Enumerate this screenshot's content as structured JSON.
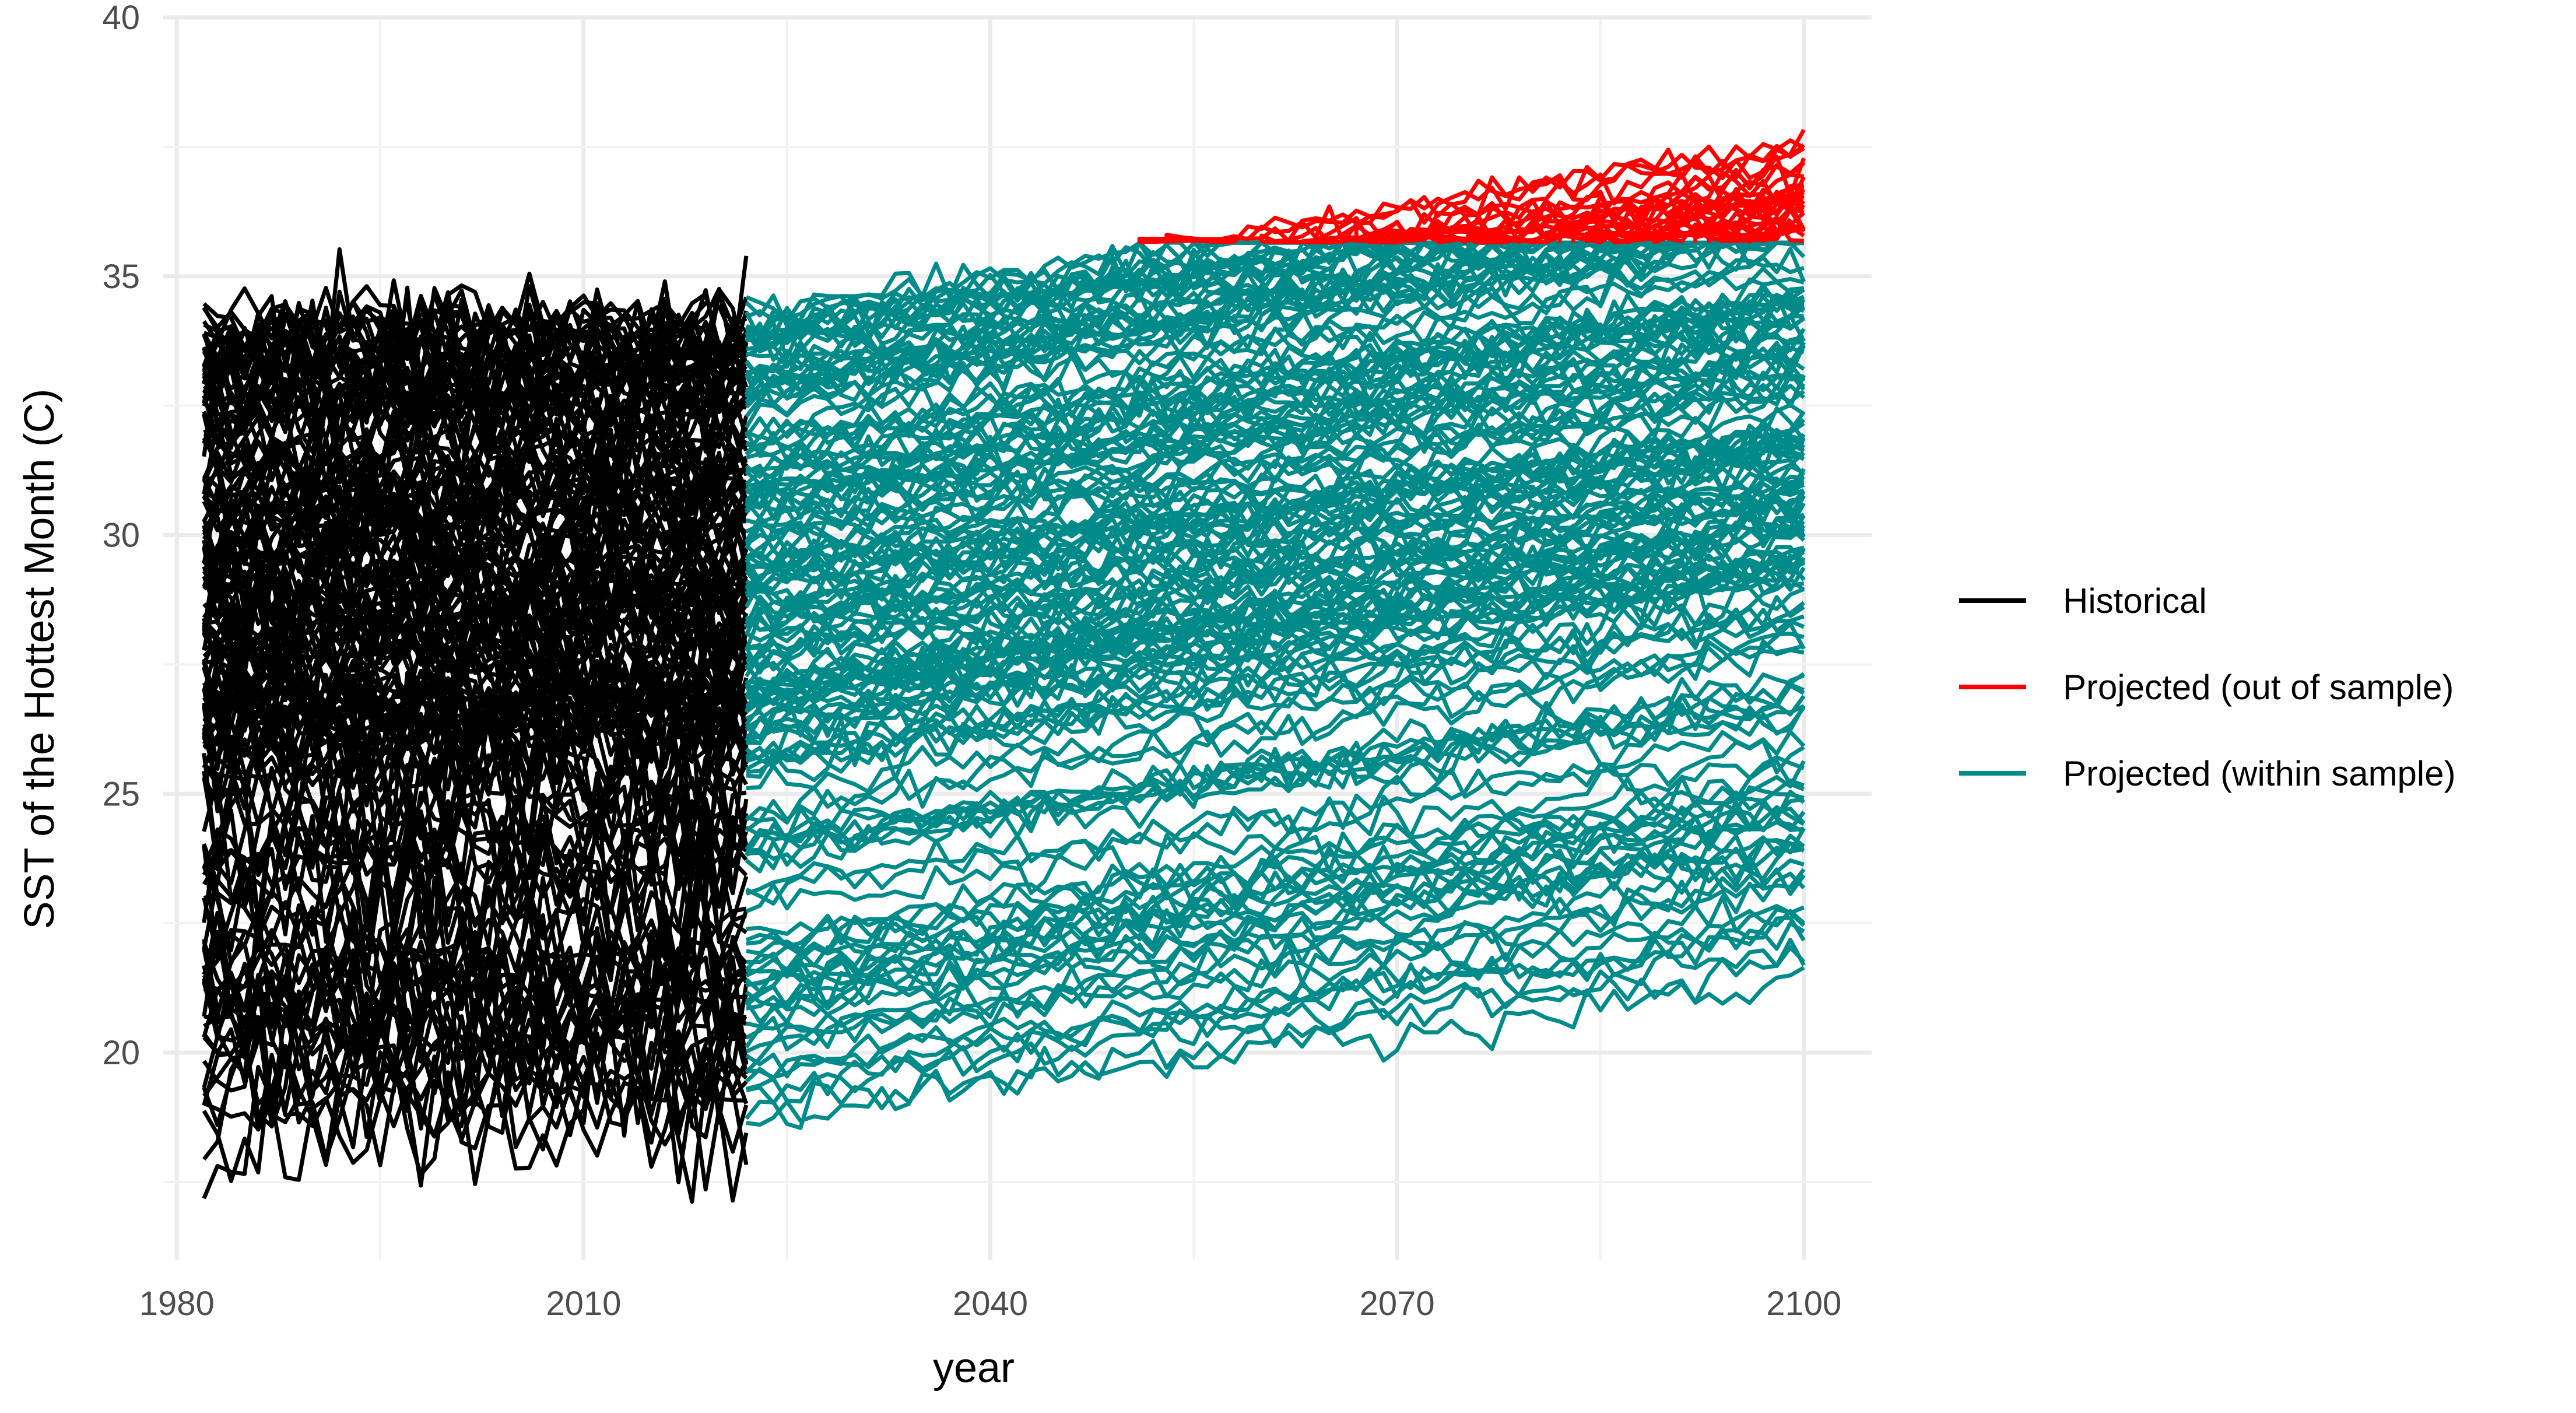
{
  "chart_data": {
    "type": "line",
    "title": "",
    "xlabel": "year",
    "ylabel": "SST of the Hottest Month (C)",
    "xlim": [
      1979,
      2105
    ],
    "ylim": [
      16,
      40
    ],
    "x_ticks": [
      1980,
      2010,
      2040,
      2070,
      2100
    ],
    "x_tick_labels": [
      "1980",
      "2010",
      "2040",
      "2070",
      "2100"
    ],
    "y_ticks": [
      20,
      25,
      30,
      35,
      40
    ],
    "y_tick_labels": [
      "20",
      "25",
      "30",
      "35",
      "40"
    ],
    "grid": true,
    "legend_position": "right",
    "cap_value": 35.65,
    "historical_years": [
      1982,
      2022
    ],
    "projection_years": [
      2022,
      2100
    ],
    "legend": [
      {
        "key": "historical",
        "label": "Historical",
        "color": "#000000"
      },
      {
        "key": "out_of_sample",
        "label": "Projected (out of sample)",
        "color": "#ff0000"
      },
      {
        "key": "within_sample",
        "label": "Projected (within sample)",
        "color": "#008b8b"
      }
    ],
    "series_groups": [
      {
        "name": "Historical",
        "color": "#000000",
        "years": [
          1982,
          2022
        ],
        "level_range": [
          18.5,
          34.2
        ],
        "count": 170
      },
      {
        "name": "Projected (within sample)",
        "color": "#008b8b",
        "years": [
          2022,
          2100
        ],
        "start_range": [
          18.7,
          34.4
        ],
        "end_range": [
          21.8,
          35.65
        ],
        "count": 170
      },
      {
        "name": "Projected (out of sample)",
        "color": "#ff0000",
        "years": [
          2046,
          2100
        ],
        "start_value": 35.65,
        "end_range": [
          35.7,
          39.0
        ],
        "count": 40
      }
    ]
  }
}
